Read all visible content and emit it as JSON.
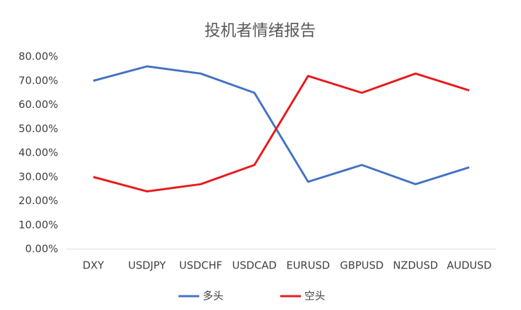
{
  "chart_data": {
    "type": "line",
    "title": "投机者情绪报告",
    "categories": [
      "DXY",
      "USDJPY",
      "USDCHF",
      "USDCAD",
      "EURUSD",
      "GBPUSD",
      "NZDUSD",
      "AUDUSD"
    ],
    "series": [
      {
        "name": "多头",
        "color": "#4472c4",
        "values": [
          70,
          76,
          73,
          65,
          28,
          35,
          27,
          34
        ]
      },
      {
        "name": "空头",
        "color": "#e8191b",
        "values": [
          30,
          24,
          27,
          35,
          72,
          65,
          73,
          66
        ]
      }
    ],
    "ylim": [
      0,
      80
    ],
    "yticks": [
      {
        "value": 0,
        "label": "0.00%"
      },
      {
        "value": 10,
        "label": "10.00%"
      },
      {
        "value": 20,
        "label": "20.00%"
      },
      {
        "value": 30,
        "label": "30.00%"
      },
      {
        "value": 40,
        "label": "40.00%"
      },
      {
        "value": 50,
        "label": "50.00%"
      },
      {
        "value": 60,
        "label": "60.00%"
      },
      {
        "value": 70,
        "label": "70.00%"
      },
      {
        "value": 80,
        "label": "80.00%"
      }
    ],
    "grid": false,
    "legend": "bottom"
  }
}
